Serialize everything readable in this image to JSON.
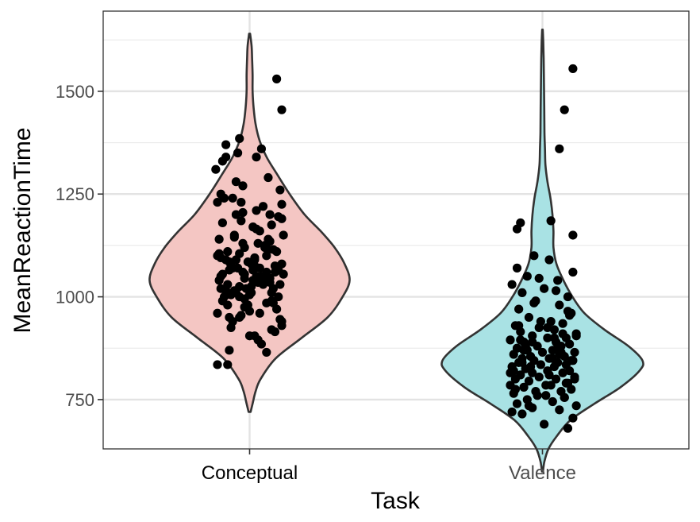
{
  "chart_data": {
    "type": "violin",
    "xlabel": "Task",
    "ylabel": "MeanReactionTime",
    "ylim": [
      630,
      1695
    ],
    "yticks": [
      750,
      1000,
      1250,
      1500
    ],
    "grid": true,
    "legend": "none",
    "categories": [
      "Conceptual",
      "Valence"
    ],
    "series": [
      {
        "category": "Conceptual",
        "fill": "#F4C6C3",
        "outline": "#333333",
        "range": [
          720,
          1640
        ],
        "density": [
          [
            720,
            0.01
          ],
          [
            740,
            0.03
          ],
          [
            770,
            0.06
          ],
          [
            800,
            0.11
          ],
          [
            850,
            0.26
          ],
          [
            900,
            0.52
          ],
          [
            950,
            0.78
          ],
          [
            1000,
            0.93
          ],
          [
            1040,
            1.0
          ],
          [
            1080,
            0.95
          ],
          [
            1120,
            0.85
          ],
          [
            1160,
            0.71
          ],
          [
            1200,
            0.55
          ],
          [
            1250,
            0.4
          ],
          [
            1300,
            0.27
          ],
          [
            1340,
            0.17
          ],
          [
            1380,
            0.1
          ],
          [
            1420,
            0.06
          ],
          [
            1460,
            0.04
          ],
          [
            1500,
            0.03
          ],
          [
            1540,
            0.03
          ],
          [
            1580,
            0.025
          ],
          [
            1610,
            0.02
          ],
          [
            1640,
            0.005
          ]
        ],
        "values": [
          835,
          835,
          870,
          885,
          905,
          915,
          930,
          940,
          950,
          960,
          965,
          970,
          975,
          980,
          985,
          990,
          995,
          1000,
          1000,
          1005,
          1010,
          1010,
          1015,
          1020,
          1020,
          1025,
          1025,
          1030,
          1030,
          1035,
          1035,
          1040,
          1040,
          1045,
          1045,
          1050,
          1050,
          1055,
          1055,
          1060,
          1060,
          1065,
          1065,
          1070,
          1070,
          1075,
          1080,
          1080,
          1085,
          1090,
          1090,
          1095,
          1100,
          1100,
          1105,
          1110,
          1115,
          1120,
          1125,
          1130,
          1135,
          1140,
          1150,
          1160,
          1170,
          1180,
          1190,
          1200,
          1200,
          1210,
          1220,
          1230,
          1240,
          1250,
          1270,
          1290,
          1310,
          1330,
          1340,
          1360,
          1370,
          1385,
          1455,
          1530,
          865,
          895,
          925,
          945,
          955,
          985,
          1015,
          1050,
          1085,
          1115,
          1145,
          1175,
          1205,
          960,
          990,
          1030,
          1070,
          1110,
          1060,
          1010,
          980,
          1095,
          1120,
          1045,
          1000,
          1065,
          1150,
          1090,
          940,
          1075,
          1130,
          1020,
          1195,
          1240,
          1340,
          1280,
          1165,
          1075,
          975,
          1035,
          1225,
          1185,
          950,
          920,
          1005,
          1105,
          1055,
          1140,
          1230,
          905,
          1350,
          1260
        ],
        "jitter": [
          -0.19,
          -0.13,
          -0.12,
          0.07,
          0.0,
          0.15,
          0.19,
          0.19,
          -0.06,
          -0.19,
          0.0,
          0.16,
          -0.03,
          -0.13,
          0.1,
          0.13,
          -0.03,
          -0.15,
          0.17,
          -0.11,
          -0.08,
          0.13,
          -0.09,
          -0.02,
          -0.17,
          0.01,
          -0.06,
          -0.13,
          0.18,
          0.05,
          0.12,
          -0.18,
          0.02,
          -0.03,
          0.09,
          -0.17,
          0.04,
          0.2,
          -0.16,
          -0.04,
          0.15,
          0.17,
          -0.12,
          0.06,
          -0.1,
          0.03,
          0.19,
          0.01,
          -0.01,
          -0.08,
          -0.14,
          0.03,
          0.1,
          -0.19,
          -0.06,
          -0.13,
          0.11,
          -0.03,
          0.09,
          -0.04,
          0.12,
          -0.18,
          -0.09,
          0.06,
          0.02,
          -0.16,
          0.19,
          0.12,
          -0.08,
          0.04,
          0.08,
          -0.05,
          -0.1,
          -0.17,
          -0.04,
          0.11,
          -0.2,
          -0.16,
          0.04,
          0.07,
          -0.14,
          -0.06,
          0.19,
          0.16,
          0.1,
          0.05,
          -0.11,
          0.18,
          -0.05,
          0.14,
          -0.14,
          0.07,
          -0.12,
          0.14,
          -0.09,
          0.13,
          -0.04,
          0.06,
          -0.16,
          0.08,
          -0.07,
          0.16,
          0.1,
          0.01,
          -0.01,
          -0.17,
          0.09,
          0.12,
          -0.06,
          0.02,
          0.2,
          0.03,
          -0.1,
          -0.11,
          0.05,
          0.14,
          0.17,
          -0.15,
          -0.14,
          -0.08,
          0.04,
          0.15,
          -0.02,
          0.08,
          0.19,
          -0.05,
          -0.12,
          0.13,
          0.0,
          -0.18,
          -0.03,
          0.11,
          -0.19,
          0.03,
          -0.07,
          0.18
        ]
      },
      {
        "category": "Valence",
        "fill": "#A9E2E4",
        "outline": "#333333",
        "range": [
          575,
          1650
        ],
        "density": [
          [
            575,
            0.005
          ],
          [
            600,
            0.02
          ],
          [
            630,
            0.06
          ],
          [
            660,
            0.14
          ],
          [
            700,
            0.28
          ],
          [
            740,
            0.52
          ],
          [
            780,
            0.78
          ],
          [
            820,
            0.97
          ],
          [
            845,
            1.0
          ],
          [
            880,
            0.86
          ],
          [
            920,
            0.62
          ],
          [
            960,
            0.42
          ],
          [
            1000,
            0.3
          ],
          [
            1040,
            0.21
          ],
          [
            1080,
            0.14
          ],
          [
            1120,
            0.11
          ],
          [
            1160,
            0.11
          ],
          [
            1200,
            0.1
          ],
          [
            1240,
            0.08
          ],
          [
            1280,
            0.05
          ],
          [
            1320,
            0.03
          ],
          [
            1360,
            0.025
          ],
          [
            1400,
            0.02
          ],
          [
            1460,
            0.018
          ],
          [
            1520,
            0.015
          ],
          [
            1580,
            0.012
          ],
          [
            1620,
            0.008
          ],
          [
            1650,
            0.003
          ]
        ],
        "values": [
          680,
          690,
          705,
          715,
          720,
          725,
          730,
          735,
          740,
          745,
          750,
          755,
          760,
          765,
          770,
          770,
          775,
          780,
          785,
          785,
          790,
          795,
          800,
          800,
          805,
          805,
          810,
          815,
          815,
          820,
          820,
          825,
          830,
          830,
          835,
          835,
          840,
          840,
          845,
          845,
          850,
          850,
          855,
          855,
          860,
          860,
          865,
          865,
          870,
          870,
          875,
          880,
          880,
          885,
          890,
          890,
          895,
          900,
          900,
          905,
          910,
          915,
          920,
          925,
          930,
          935,
          940,
          950,
          960,
          970,
          980,
          990,
          1000,
          1010,
          1020,
          1030,
          1040,
          1050,
          1060,
          1070,
          1090,
          1100,
          1150,
          1165,
          1180,
          1185,
          1360,
          1455,
          1555,
          760,
          790,
          820,
          850,
          880,
          910,
          940,
          800,
          830,
          860,
          895,
          925,
          955,
          985,
          1015,
          870,
          845,
          815,
          785,
          755,
          735,
          900,
          930,
          965,
          1045,
          875,
          905,
          775,
          810,
          840,
          865,
          890
        ],
        "jitter": [
          0.15,
          0.01,
          0.18,
          -0.12,
          -0.18,
          0.1,
          -0.06,
          0.2,
          -0.15,
          0.06,
          -0.09,
          0.13,
          0.02,
          -0.17,
          0.11,
          -0.04,
          0.17,
          -0.11,
          0.05,
          -0.19,
          0.15,
          -0.08,
          0.08,
          -0.16,
          0.19,
          -0.02,
          -0.13,
          0.12,
          -0.06,
          0.03,
          0.16,
          -0.1,
          0.07,
          -0.18,
          -0.01,
          0.14,
          -0.14,
          0.09,
          -0.05,
          0.18,
          -0.12,
          0.04,
          0.13,
          -0.07,
          -0.17,
          0.1,
          0.0,
          0.19,
          -0.09,
          0.06,
          -0.15,
          0.11,
          -0.03,
          0.16,
          -0.11,
          0.08,
          -0.19,
          0.03,
          0.14,
          -0.06,
          0.2,
          -0.13,
          0.07,
          -0.02,
          -0.16,
          0.12,
          0.05,
          -0.08,
          0.17,
          -0.14,
          0.1,
          -0.04,
          0.15,
          -0.12,
          0.01,
          -0.18,
          0.09,
          -0.09,
          0.18,
          -0.15,
          0.04,
          -0.05,
          0.18,
          -0.15,
          -0.13,
          0.05,
          0.1,
          0.13,
          0.18,
          -0.03,
          0.14,
          -0.17,
          0.06,
          -0.1,
          0.12,
          -0.01,
          0.19,
          -0.07,
          0.11,
          -0.13,
          0.03,
          0.16,
          -0.05,
          0.08,
          -0.11,
          0.17,
          -0.19,
          0.02,
          0.13,
          -0.08,
          0.07,
          -0.14,
          0.15,
          -0.02,
          0.09,
          0.2,
          -0.16,
          0.04,
          -0.12,
          0.11,
          -0.06
        ]
      }
    ]
  }
}
